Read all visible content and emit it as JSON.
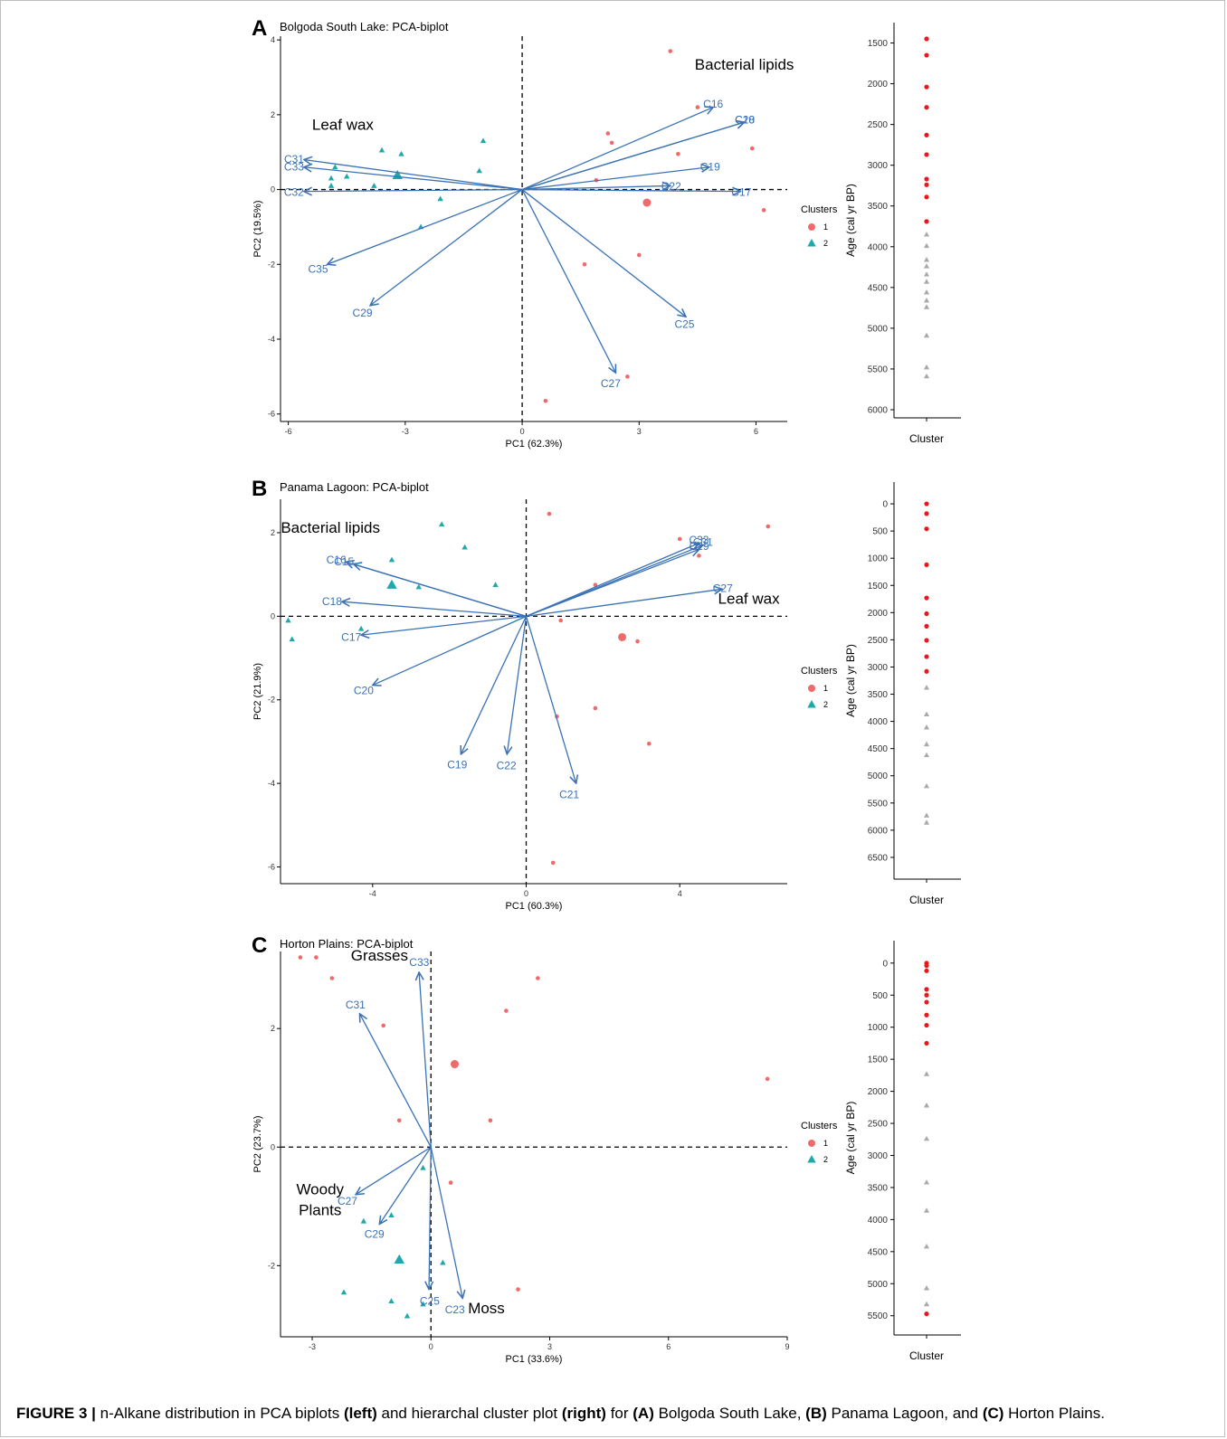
{
  "caption": {
    "figure_label": "FIGURE 3 |",
    "parts": [
      {
        "t": " n-Alkane distribution in PCA biplots ",
        "b": false
      },
      {
        "t": "(left)",
        "b": true
      },
      {
        "t": " and hierarchal cluster plot ",
        "b": false
      },
      {
        "t": "(right)",
        "b": true
      },
      {
        "t": " for ",
        "b": false
      },
      {
        "t": "(A)",
        "b": true
      },
      {
        "t": " Bolgoda South Lake, ",
        "b": false
      },
      {
        "t": "(B)",
        "b": true
      },
      {
        "t": " Panama Lagoon, and ",
        "b": false
      },
      {
        "t": "(C)",
        "b": true
      },
      {
        "t": " Horton Plains.",
        "b": false
      }
    ]
  },
  "colors": {
    "cluster1": "#ef6b6b",
    "cluster2": "#1fa9ad",
    "arrow": "#3a72b5",
    "age_c1": "#e8191c",
    "age_c2": "#a9a9a9"
  },
  "legend": {
    "title": "Clusters",
    "items": [
      "1",
      "2"
    ]
  },
  "chart_data": [
    {
      "type": "scatter",
      "panel": "A",
      "title": "Bolgoda South Lake: PCA-biplot",
      "xlabel": "PC1 (62.3%)",
      "ylabel": "PC2 (19.5%)",
      "xlim": [
        -6.2,
        6.8
      ],
      "ylim": [
        -6.2,
        4.1
      ],
      "xticks": [
        -6,
        -3,
        0,
        3,
        6
      ],
      "yticks": [
        -6,
        -4,
        -2,
        0,
        2,
        4
      ],
      "group_labels": [
        {
          "text": "Leaf wax",
          "x": -4.6,
          "y": 1.6
        },
        {
          "text": "Bacterial lipids",
          "x": 5.7,
          "y": 3.2
        }
      ],
      "loadings": [
        {
          "name": "C16",
          "x": 4.9,
          "y": 2.2
        },
        {
          "name": "C20",
          "x": 5.7,
          "y": 1.8
        },
        {
          "name": "C18",
          "x": 5.7,
          "y": 1.8
        },
        {
          "name": "C19",
          "x": 4.8,
          "y": 0.6
        },
        {
          "name": "C22",
          "x": 3.8,
          "y": 0.1
        },
        {
          "name": "C17",
          "x": 5.6,
          "y": -0.05
        },
        {
          "name": "C25",
          "x": 4.2,
          "y": -3.4
        },
        {
          "name": "C27",
          "x": 2.4,
          "y": -4.9
        },
        {
          "name": "C29",
          "x": -3.9,
          "y": -3.1
        },
        {
          "name": "C35",
          "x": -5.0,
          "y": -2.0
        },
        {
          "name": "C31",
          "x": -5.6,
          "y": 0.8
        },
        {
          "name": "C33",
          "x": -5.6,
          "y": 0.6
        },
        {
          "name": "C32",
          "x": -5.6,
          "y": -0.05
        }
      ],
      "cluster1_points": [
        [
          3.8,
          3.7
        ],
        [
          4.5,
          2.2
        ],
        [
          2.2,
          1.5
        ],
        [
          2.3,
          1.25
        ],
        [
          4.0,
          0.95
        ],
        [
          5.9,
          1.1
        ],
        [
          1.9,
          0.25
        ],
        [
          6.2,
          -0.55
        ],
        [
          3.0,
          -1.75
        ],
        [
          1.6,
          -2.0
        ],
        [
          2.7,
          -5.0
        ],
        [
          0.6,
          -5.65
        ]
      ],
      "cluster2_points": [
        [
          -1.0,
          1.3
        ],
        [
          -3.6,
          1.05
        ],
        [
          -3.1,
          0.95
        ],
        [
          -4.8,
          0.6
        ],
        [
          -1.1,
          0.5
        ],
        [
          -4.5,
          0.35
        ],
        [
          -4.9,
          0.3
        ],
        [
          -3.8,
          0.1
        ],
        [
          -4.9,
          0.1
        ],
        [
          -2.1,
          -0.25
        ],
        [
          -2.6,
          -1.0
        ]
      ],
      "cluster1_centroid": [
        3.2,
        -0.35
      ],
      "cluster2_centroid": [
        -3.2,
        0.38
      ],
      "age_plot": {
        "ylabel": "Age (cal yr BP)",
        "xlabel": "Cluster",
        "yticks": [
          1500,
          2000,
          2500,
          3000,
          3500,
          4000,
          4500,
          5000,
          5500,
          6000
        ],
        "ylim": [
          1250,
          6100
        ],
        "cluster1_ages": [
          1450,
          1650,
          2040,
          2290,
          2630,
          2870,
          3170,
          3240,
          3390,
          3690
        ],
        "cluster2_ages": [
          3850,
          3990,
          4160,
          4240,
          4340,
          4430,
          4560,
          4660,
          4740,
          5090,
          5480,
          5590
        ]
      }
    },
    {
      "type": "scatter",
      "panel": "B",
      "title": "Panama Lagoon: PCA-biplot",
      "xlabel": "PC1 (60.3%)",
      "ylabel": "PC2 (21.9%)",
      "xlim": [
        -6.4,
        6.8
      ],
      "ylim": [
        -6.4,
        2.8
      ],
      "xticks": [
        -4,
        0,
        4
      ],
      "yticks": [
        -6,
        -4,
        -2,
        0,
        2
      ],
      "group_labels": [
        {
          "text": "Bacterial lipids",
          "x": -5.1,
          "y": 2.0
        },
        {
          "text": "Leaf wax",
          "x": 5.8,
          "y": 0.3
        }
      ],
      "loadings": [
        {
          "name": "C33",
          "x": 4.5,
          "y": 1.75
        },
        {
          "name": "C31",
          "x": 4.6,
          "y": 1.7
        },
        {
          "name": "C29",
          "x": 4.5,
          "y": 1.6
        },
        {
          "name": "C27",
          "x": 5.1,
          "y": 0.65
        },
        {
          "name": "C16",
          "x": -4.7,
          "y": 1.3
        },
        {
          "name": "C15",
          "x": -4.5,
          "y": 1.25
        },
        {
          "name": "C18",
          "x": -4.8,
          "y": 0.35
        },
        {
          "name": "C17",
          "x": -4.3,
          "y": -0.45
        },
        {
          "name": "C20",
          "x": -4.0,
          "y": -1.65
        },
        {
          "name": "C19",
          "x": -1.7,
          "y": -3.3
        },
        {
          "name": "C22",
          "x": -0.5,
          "y": -3.3
        },
        {
          "name": "C21",
          "x": 1.3,
          "y": -4.0
        }
      ],
      "cluster1_points": [
        [
          0.6,
          2.45
        ],
        [
          6.3,
          2.15
        ],
        [
          4.0,
          1.85
        ],
        [
          4.5,
          1.45
        ],
        [
          1.8,
          0.75
        ],
        [
          0.9,
          -0.1
        ],
        [
          2.9,
          -0.6
        ],
        [
          0.8,
          -2.4
        ],
        [
          1.8,
          -2.2
        ],
        [
          3.2,
          -3.05
        ],
        [
          0.7,
          -5.9
        ]
      ],
      "cluster2_points": [
        [
          -2.2,
          2.2
        ],
        [
          -1.6,
          1.65
        ],
        [
          -3.5,
          1.35
        ],
        [
          -0.8,
          0.75
        ],
        [
          -2.8,
          0.7
        ],
        [
          -6.2,
          -0.1
        ],
        [
          -4.3,
          -0.3
        ],
        [
          -6.1,
          -0.55
        ]
      ],
      "cluster1_centroid": [
        2.5,
        -0.5
      ],
      "cluster2_centroid": [
        -3.5,
        0.75
      ],
      "age_plot": {
        "ylabel": "Age (cal yr BP)",
        "xlabel": "Cluster",
        "yticks": [
          0,
          500,
          1000,
          1500,
          2000,
          2500,
          3000,
          3500,
          4000,
          4500,
          5000,
          5500,
          6000,
          6500
        ],
        "ylim": [
          -400,
          6900
        ],
        "cluster1_ages": [
          0,
          180,
          460,
          1120,
          1730,
          2020,
          2250,
          2510,
          2810,
          3080
        ],
        "cluster2_ages": [
          3380,
          3870,
          4110,
          4420,
          4620,
          5190,
          5730,
          5860
        ]
      }
    },
    {
      "type": "scatter",
      "panel": "C",
      "title": "Horton Plains: PCA-biplot",
      "xlabel": "PC1 (33.6%)",
      "ylabel": "PC2 (23.7%)",
      "xlim": [
        -3.8,
        9.0
      ],
      "ylim": [
        -3.2,
        3.3
      ],
      "xticks": [
        -3,
        0,
        3,
        6,
        9
      ],
      "yticks": [
        -2,
        0,
        2
      ],
      "group_labels": [
        {
          "text": "Grasses",
          "x": -1.3,
          "y": 3.15
        },
        {
          "text": "Woody",
          "x": -2.8,
          "y": -0.8
        },
        {
          "text": "Plants",
          "x": -2.8,
          "y": -1.15
        },
        {
          "text": "Moss",
          "x": 1.4,
          "y": -2.8
        }
      ],
      "loadings": [
        {
          "name": "C33",
          "x": -0.3,
          "y": 2.95
        },
        {
          "name": "C31",
          "x": -1.8,
          "y": 2.25
        },
        {
          "name": "C27",
          "x": -1.9,
          "y": -0.8
        },
        {
          "name": "C29",
          "x": -1.3,
          "y": -1.3
        },
        {
          "name": "C25",
          "x": -0.05,
          "y": -2.4
        },
        {
          "name": "C23",
          "x": 0.8,
          "y": -2.55
        }
      ],
      "cluster1_points": [
        [
          -3.3,
          3.2
        ],
        [
          -2.9,
          3.2
        ],
        [
          -2.5,
          2.85
        ],
        [
          2.7,
          2.85
        ],
        [
          1.9,
          2.3
        ],
        [
          -1.2,
          2.05
        ],
        [
          1.5,
          0.45
        ],
        [
          -0.8,
          0.45
        ],
        [
          0.5,
          -0.6
        ],
        [
          8.5,
          1.15
        ],
        [
          2.2,
          -2.4
        ]
      ],
      "cluster2_points": [
        [
          -0.2,
          -0.35
        ],
        [
          -1.0,
          -1.15
        ],
        [
          -1.7,
          -1.25
        ],
        [
          0.3,
          -1.95
        ],
        [
          -2.2,
          -2.45
        ],
        [
          -1.0,
          -2.6
        ],
        [
          -0.2,
          -2.65
        ],
        [
          -0.6,
          -2.85
        ]
      ],
      "cluster1_centroid": [
        0.6,
        1.4
      ],
      "cluster2_centroid": [
        -0.8,
        -1.9
      ],
      "age_plot": {
        "ylabel": "Age (cal yr BP)",
        "xlabel": "Cluster",
        "yticks": [
          0,
          500,
          1000,
          1500,
          2000,
          2500,
          3000,
          3500,
          4000,
          4500,
          5000,
          5500
        ],
        "ylim": [
          -350,
          5800
        ],
        "cluster1_ages": [
          0,
          40,
          120,
          410,
          500,
          610,
          810,
          970,
          1250,
          5470
        ],
        "cluster2_ages": [
          1730,
          2220,
          2740,
          3420,
          3860,
          4420,
          5070,
          5320
        ]
      }
    }
  ]
}
